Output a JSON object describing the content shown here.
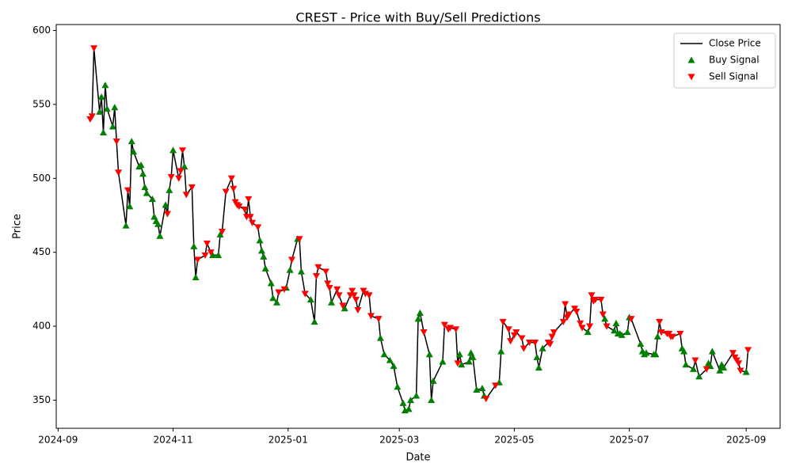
{
  "chart_data": {
    "type": "line",
    "title": "CREST - Price with Buy/Sell Predictions",
    "x_label": "Date",
    "y_label": "Price",
    "xlim": [
      "2024-08-31",
      "2025-09-19"
    ],
    "xticks": [
      {
        "value": "2024-09-01",
        "label": "2024-09"
      },
      {
        "value": "2024-11-01",
        "label": "2024-11"
      },
      {
        "value": "2025-01-01",
        "label": "2025-01"
      },
      {
        "value": "2025-03-01",
        "label": "2025-03"
      },
      {
        "value": "2025-05-01",
        "label": "2025-05"
      },
      {
        "value": "2025-07-01",
        "label": "2025-07"
      },
      {
        "value": "2025-09-01",
        "label": "2025-09"
      }
    ],
    "ylim": [
      331,
      604
    ],
    "yticks": [
      350,
      400,
      450,
      500,
      550,
      600
    ],
    "legend": "upper right",
    "series": [
      {
        "name": "Close Price",
        "type": "line",
        "color": "#000000",
        "x": [
          "2024-09-18",
          "2024-09-19",
          "2024-09-20",
          "2024-09-23",
          "2024-09-24",
          "2024-09-25",
          "2024-09-26",
          "2024-09-27",
          "2024-09-30",
          "2024-10-01",
          "2024-10-02",
          "2024-10-03",
          "2024-10-07",
          "2024-10-08",
          "2024-10-09",
          "2024-10-10",
          "2024-10-11",
          "2024-10-14",
          "2024-10-15",
          "2024-10-16",
          "2024-10-17",
          "2024-10-18",
          "2024-10-21",
          "2024-10-22",
          "2024-10-23",
          "2024-10-24",
          "2024-10-25",
          "2024-10-28",
          "2024-10-29",
          "2024-10-30",
          "2024-10-31",
          "2024-11-01",
          "2024-11-04",
          "2024-11-05",
          "2024-11-06",
          "2024-11-07",
          "2024-11-08",
          "2024-11-11",
          "2024-11-12",
          "2024-11-13",
          "2024-11-14",
          "2024-11-18",
          "2024-11-19",
          "2024-11-21",
          "2024-11-22",
          "2024-11-25",
          "2024-11-26",
          "2024-11-27",
          "2024-11-29",
          "2024-12-02",
          "2024-12-03",
          "2024-12-04",
          "2024-12-05",
          "2024-12-06",
          "2024-12-09",
          "2024-12-10",
          "2024-12-11",
          "2024-12-12",
          "2024-12-13",
          "2024-12-16",
          "2024-12-17",
          "2024-12-18",
          "2024-12-19",
          "2024-12-20",
          "2024-12-23",
          "2024-12-24",
          "2024-12-26",
          "2024-12-27",
          "2024-12-30",
          "2024-12-31",
          "2025-01-02",
          "2025-01-03",
          "2025-01-06",
          "2025-01-07",
          "2025-01-08",
          "2025-01-10",
          "2025-01-13",
          "2025-01-15",
          "2025-01-16",
          "2025-01-17",
          "2025-01-21",
          "2025-01-22",
          "2025-01-23",
          "2025-01-24",
          "2025-01-27",
          "2025-01-28",
          "2025-01-30",
          "2025-01-31",
          "2025-02-03",
          "2025-02-04",
          "2025-02-05",
          "2025-02-06",
          "2025-02-07",
          "2025-02-10",
          "2025-02-11",
          "2025-02-13",
          "2025-02-14",
          "2025-02-18",
          "2025-02-19",
          "2025-02-21",
          "2025-02-24",
          "2025-02-26",
          "2025-02-28",
          "2025-03-03",
          "2025-03-04",
          "2025-03-06",
          "2025-03-07",
          "2025-03-10",
          "2025-03-11",
          "2025-03-12",
          "2025-03-14",
          "2025-03-17",
          "2025-03-18",
          "2025-03-19",
          "2025-03-24",
          "2025-03-25",
          "2025-03-27",
          "2025-03-28",
          "2025-03-31",
          "2025-04-01",
          "2025-04-02",
          "2025-04-03",
          "2025-04-07",
          "2025-04-08",
          "2025-04-09",
          "2025-04-11",
          "2025-04-14",
          "2025-04-15",
          "2025-04-16",
          "2025-04-21",
          "2025-04-23",
          "2025-04-24",
          "2025-04-25",
          "2025-04-28",
          "2025-04-29",
          "2025-05-01",
          "2025-05-02",
          "2025-05-05",
          "2025-05-06",
          "2025-05-09",
          "2025-05-12",
          "2025-05-13",
          "2025-05-14",
          "2025-05-16",
          "2025-05-19",
          "2025-05-20",
          "2025-05-21",
          "2025-05-22",
          "2025-05-27",
          "2025-05-28",
          "2025-05-29",
          "2025-05-30",
          "2025-06-02",
          "2025-06-03",
          "2025-06-05",
          "2025-06-06",
          "2025-06-09",
          "2025-06-10",
          "2025-06-11",
          "2025-06-12",
          "2025-06-13",
          "2025-06-16",
          "2025-06-17",
          "2025-06-18",
          "2025-06-19",
          "2025-06-23",
          "2025-06-24",
          "2025-06-25",
          "2025-06-26",
          "2025-06-27",
          "2025-06-30",
          "2025-07-01",
          "2025-07-02",
          "2025-07-07",
          "2025-07-08",
          "2025-07-09",
          "2025-07-10",
          "2025-07-14",
          "2025-07-15",
          "2025-07-16",
          "2025-07-17",
          "2025-07-18",
          "2025-07-21",
          "2025-07-22",
          "2025-07-23",
          "2025-07-24",
          "2025-07-28",
          "2025-07-29",
          "2025-07-30",
          "2025-07-31",
          "2025-08-04",
          "2025-08-05",
          "2025-08-07",
          "2025-08-11",
          "2025-08-12",
          "2025-08-13",
          "2025-08-14",
          "2025-08-18",
          "2025-08-19",
          "2025-08-20",
          "2025-08-25",
          "2025-08-26",
          "2025-08-27",
          "2025-08-28",
          "2025-08-29",
          "2025-09-01",
          "2025-09-02"
        ],
        "values": [
          540,
          542,
          588,
          545,
          555,
          531,
          563,
          547,
          535,
          548,
          525,
          504,
          468,
          492,
          481,
          525,
          518,
          508,
          509,
          503,
          494,
          490,
          486,
          474,
          471,
          469,
          461,
          482,
          476,
          492,
          501,
          519,
          500,
          505,
          519,
          508,
          489,
          494,
          454,
          433,
          445,
          448,
          456,
          450,
          448,
          448,
          462,
          464,
          491,
          500,
          493,
          484,
          482,
          481,
          479,
          474,
          486,
          474,
          470,
          467,
          458,
          451,
          447,
          439,
          429,
          419,
          416,
          423,
          425,
          426,
          438,
          445,
          459,
          459,
          437,
          422,
          418,
          403,
          434,
          440,
          437,
          429,
          426,
          416,
          425,
          421,
          414,
          412,
          421,
          424,
          421,
          418,
          411,
          424,
          422,
          421,
          407,
          405,
          392,
          381,
          377,
          373,
          359,
          348,
          343,
          344,
          350,
          353,
          405,
          409,
          396,
          381,
          350,
          363,
          376,
          401,
          398,
          399,
          398,
          375,
          381,
          374,
          376,
          382,
          379,
          357,
          358,
          353,
          351,
          360,
          362,
          383,
          403,
          398,
          390,
          394,
          396,
          392,
          385,
          389,
          389,
          379,
          372,
          385,
          389,
          388,
          393,
          396,
          403,
          415,
          406,
          408,
          412,
          410,
          402,
          399,
          396,
          400,
          421,
          417,
          418,
          418,
          408,
          405,
          400,
          397,
          402,
          395,
          395,
          394,
          396,
          406,
          405,
          388,
          383,
          381,
          382,
          381,
          381,
          393,
          403,
          396,
          395,
          395,
          393,
          393,
          395,
          385,
          383,
          374,
          371,
          377,
          366,
          371,
          375,
          373,
          383,
          370,
          374,
          372,
          382,
          379,
          377,
          375,
          370,
          369,
          384
        ]
      },
      {
        "name": "Buy Signal",
        "type": "scatter",
        "marker": "triangle-up",
        "color": "#008000",
        "x": [
          "2024-09-23",
          "2024-09-24",
          "2024-09-25",
          "2024-09-26",
          "2024-09-27",
          "2024-09-30",
          "2024-10-01",
          "2024-10-07",
          "2024-10-09",
          "2024-10-10",
          "2024-10-11",
          "2024-10-14",
          "2024-10-15",
          "2024-10-16",
          "2024-10-17",
          "2024-10-18",
          "2024-10-21",
          "2024-10-22",
          "2024-10-23",
          "2024-10-24",
          "2024-10-25",
          "2024-10-28",
          "2024-10-30",
          "2024-11-01",
          "2024-11-07",
          "2024-11-12",
          "2024-11-13",
          "2024-11-22",
          "2024-11-25",
          "2024-11-26",
          "2024-12-17",
          "2024-12-18",
          "2024-12-19",
          "2024-12-20",
          "2024-12-23",
          "2024-12-24",
          "2024-12-26",
          "2024-12-31",
          "2025-01-02",
          "2025-01-06",
          "2025-01-08",
          "2025-01-13",
          "2025-01-15",
          "2025-01-24",
          "2025-01-31",
          "2025-02-19",
          "2025-02-21",
          "2025-02-24",
          "2025-02-26",
          "2025-02-28",
          "2025-03-03",
          "2025-03-04",
          "2025-03-06",
          "2025-03-07",
          "2025-03-10",
          "2025-03-11",
          "2025-03-12",
          "2025-03-17",
          "2025-03-18",
          "2025-03-19",
          "2025-03-24",
          "2025-04-02",
          "2025-04-03",
          "2025-04-07",
          "2025-04-08",
          "2025-04-09",
          "2025-04-11",
          "2025-04-14",
          "2025-04-15",
          "2025-04-23",
          "2025-04-24",
          "2025-05-13",
          "2025-05-14",
          "2025-05-16",
          "2025-06-09",
          "2025-06-18",
          "2025-06-23",
          "2025-06-24",
          "2025-06-25",
          "2025-06-26",
          "2025-06-27",
          "2025-06-30",
          "2025-07-01",
          "2025-07-07",
          "2025-07-08",
          "2025-07-09",
          "2025-07-10",
          "2025-07-14",
          "2025-07-15",
          "2025-07-16",
          "2025-07-29",
          "2025-07-30",
          "2025-07-31",
          "2025-08-04",
          "2025-08-07",
          "2025-08-12",
          "2025-08-13",
          "2025-08-14",
          "2025-08-18",
          "2025-08-19",
          "2025-08-20",
          "2025-09-01"
        ],
        "values": [
          545,
          555,
          531,
          563,
          547,
          535,
          548,
          468,
          481,
          525,
          518,
          508,
          509,
          503,
          494,
          490,
          486,
          474,
          471,
          469,
          461,
          482,
          492,
          519,
          508,
          454,
          433,
          448,
          448,
          462,
          458,
          451,
          447,
          439,
          429,
          419,
          416,
          426,
          438,
          459,
          437,
          418,
          403,
          416,
          412,
          392,
          381,
          377,
          373,
          359,
          348,
          343,
          344,
          350,
          353,
          405,
          409,
          381,
          350,
          363,
          376,
          381,
          374,
          376,
          382,
          379,
          357,
          358,
          353,
          362,
          383,
          379,
          372,
          385,
          396,
          405,
          397,
          402,
          395,
          395,
          394,
          396,
          406,
          388,
          383,
          381,
          382,
          381,
          381,
          393,
          385,
          383,
          374,
          371,
          366,
          375,
          373,
          383,
          370,
          374,
          372,
          369
        ]
      },
      {
        "name": "Sell Signal",
        "type": "scatter",
        "marker": "triangle-down",
        "color": "#ff0000",
        "x": [
          "2024-09-18",
          "2024-09-19",
          "2024-09-20",
          "2024-10-02",
          "2024-10-03",
          "2024-10-08",
          "2024-10-29",
          "2024-10-31",
          "2024-11-04",
          "2024-11-05",
          "2024-11-06",
          "2024-11-08",
          "2024-11-11",
          "2024-11-14",
          "2024-11-18",
          "2024-11-19",
          "2024-11-21",
          "2024-11-27",
          "2024-11-29",
          "2024-12-02",
          "2024-12-03",
          "2024-12-04",
          "2024-12-05",
          "2024-12-06",
          "2024-12-09",
          "2024-12-10",
          "2024-12-11",
          "2024-12-12",
          "2024-12-13",
          "2024-12-16",
          "2024-12-27",
          "2024-12-30",
          "2025-01-03",
          "2025-01-07",
          "2025-01-10",
          "2025-01-16",
          "2025-01-17",
          "2025-01-21",
          "2025-01-22",
          "2025-01-23",
          "2025-01-27",
          "2025-01-28",
          "2025-01-30",
          "2025-02-03",
          "2025-02-04",
          "2025-02-05",
          "2025-02-06",
          "2025-02-07",
          "2025-02-10",
          "2025-02-11",
          "2025-02-13",
          "2025-02-14",
          "2025-02-18",
          "2025-03-14",
          "2025-03-25",
          "2025-03-27",
          "2025-03-28",
          "2025-03-31",
          "2025-04-01",
          "2025-04-16",
          "2025-04-21",
          "2025-04-25",
          "2025-04-28",
          "2025-04-29",
          "2025-05-01",
          "2025-05-02",
          "2025-05-05",
          "2025-05-06",
          "2025-05-09",
          "2025-05-12",
          "2025-05-19",
          "2025-05-20",
          "2025-05-21",
          "2025-05-22",
          "2025-05-27",
          "2025-05-28",
          "2025-05-29",
          "2025-05-30",
          "2025-06-02",
          "2025-06-03",
          "2025-06-05",
          "2025-06-06",
          "2025-06-10",
          "2025-06-11",
          "2025-06-12",
          "2025-06-13",
          "2025-06-16",
          "2025-06-17",
          "2025-06-19",
          "2025-07-02",
          "2025-07-17",
          "2025-07-18",
          "2025-07-21",
          "2025-07-22",
          "2025-07-23",
          "2025-07-24",
          "2025-07-28",
          "2025-08-05",
          "2025-08-11",
          "2025-08-25",
          "2025-08-26",
          "2025-08-27",
          "2025-08-28",
          "2025-08-29",
          "2025-09-02"
        ],
        "values": [
          540,
          542,
          588,
          525,
          504,
          492,
          476,
          501,
          500,
          505,
          519,
          489,
          494,
          445,
          448,
          456,
          450,
          464,
          491,
          500,
          493,
          484,
          482,
          481,
          479,
          474,
          486,
          474,
          470,
          467,
          423,
          425,
          445,
          459,
          422,
          434,
          440,
          437,
          429,
          426,
          425,
          421,
          414,
          421,
          424,
          421,
          418,
          411,
          424,
          422,
          421,
          407,
          405,
          396,
          401,
          398,
          399,
          398,
          375,
          351,
          360,
          403,
          398,
          390,
          394,
          396,
          392,
          385,
          389,
          389,
          389,
          388,
          393,
          396,
          403,
          415,
          406,
          408,
          412,
          410,
          402,
          399,
          400,
          421,
          417,
          418,
          418,
          408,
          400,
          405,
          403,
          396,
          395,
          395,
          393,
          393,
          395,
          377,
          371,
          382,
          379,
          377,
          375,
          370,
          384
        ]
      }
    ]
  }
}
